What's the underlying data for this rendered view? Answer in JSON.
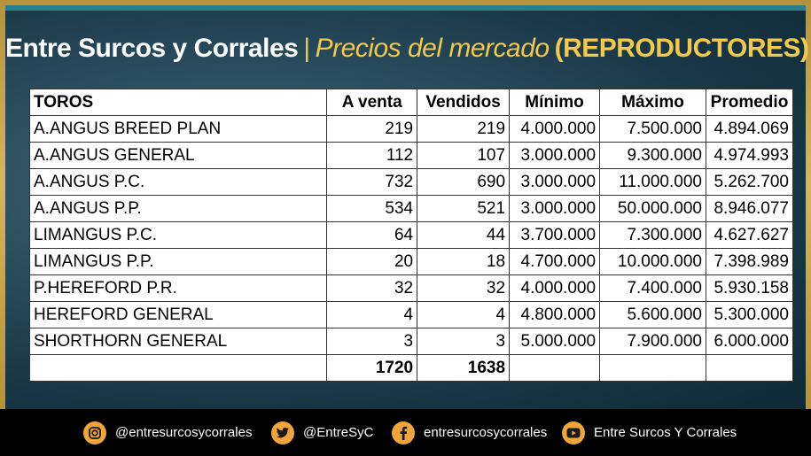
{
  "header": {
    "title_main": "Entre Surcos y Corrales",
    "separator": "|",
    "title_sub": "Precios del mercado",
    "title_tag": "(REPRODUCTORES)"
  },
  "table": {
    "columns": [
      "TOROS",
      "A venta",
      "Vendidos",
      "Mínimo",
      "Máximo",
      "Promedio"
    ],
    "rows": [
      [
        "A.ANGUS BREED PLAN",
        "219",
        "219",
        "4.000.000",
        "7.500.000",
        "4.894.069"
      ],
      [
        "A.ANGUS GENERAL",
        "112",
        "107",
        "3.000.000",
        "9.300.000",
        "4.974.993"
      ],
      [
        "A.ANGUS P.C.",
        "732",
        "690",
        "3.000.000",
        "11.000.000",
        "5.262.700"
      ],
      [
        "A.ANGUS P.P.",
        "534",
        "521",
        "3.000.000",
        "50.000.000",
        "8.946.077"
      ],
      [
        "LIMANGUS P.C.",
        "64",
        "44",
        "3.700.000",
        "7.300.000",
        "4.627.627"
      ],
      [
        "LIMANGUS P.P.",
        "20",
        "18",
        "4.700.000",
        "10.000.000",
        "7.398.989"
      ],
      [
        "P.HEREFORD P.R.",
        "32",
        "32",
        "4.000.000",
        "7.400.000",
        "5.930.158"
      ],
      [
        "HEREFORD GENERAL",
        "4",
        "4",
        "4.800.000",
        "5.600.000",
        "5.300.000"
      ],
      [
        "SHORTHORN GENERAL",
        "3",
        "3",
        "5.000.000",
        "7.900.000",
        "6.000.000"
      ]
    ],
    "totals": [
      "",
      "1720",
      "1638",
      "",
      "",
      ""
    ]
  },
  "footer": {
    "instagram": "@entresurcosycorrales",
    "twitter": "@EntreSyC",
    "facebook": "entresurcosycorrales",
    "youtube": "Entre Surcos Y Corrales"
  },
  "colors": {
    "accent": "#f2c94c",
    "icon_bg": "#f0a43a",
    "frame_gold": "#c9a24a",
    "panel_dark": "#173544"
  }
}
